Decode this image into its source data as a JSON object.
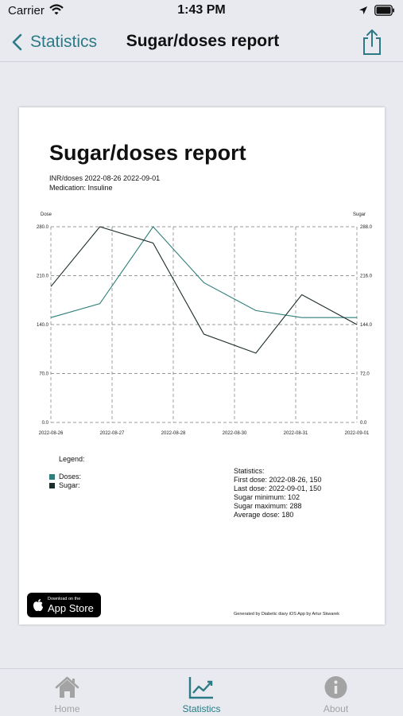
{
  "status_bar": {
    "carrier": "Carrier",
    "time": "1:43 PM"
  },
  "nav": {
    "back_label": "Statistics",
    "title": "Sugar/doses report"
  },
  "report": {
    "title": "Sugar/doses report",
    "subtitle": "INR/doses 2022-08-26 2022-09-01",
    "medication": "Medication: Insuline",
    "legend_title": "Legend:",
    "legend": [
      {
        "label": "Doses:",
        "color": "#2e7f7a"
      },
      {
        "label": "Sugar:",
        "color": "#1c2b2b"
      }
    ],
    "stats": [
      "Statistics:",
      "First dose: 2022-08-26, 150",
      "Last dose: 2022-09-01, 150",
      "Sugar minimum: 102",
      "Sugar maximum: 288",
      "Average dose: 180"
    ],
    "appstore": {
      "small": "Download on the",
      "big": "App Store"
    },
    "generated_by": "Generated by Diabetic diary iOS App by Artur Skwarek"
  },
  "chart_data": {
    "type": "line",
    "left_axis_label": "Dose",
    "right_axis_label": "Sugar",
    "categories": [
      "2022-08-26",
      "2022-08-27",
      "2022-08-28",
      "2022-08-30",
      "2022-08-31",
      "2022-09-01"
    ],
    "left_ticks": [
      "0.0",
      "70.0",
      "140.0",
      "210.0",
      "280.0"
    ],
    "right_ticks": [
      "0.0",
      "72.0",
      "144.0",
      "216.0",
      "288.0"
    ],
    "left_range": [
      0,
      280
    ],
    "right_range": [
      0,
      288
    ],
    "grid": true,
    "series": [
      {
        "name": "Doses",
        "axis": "left",
        "color": "#2e7f7a",
        "x": [
          0,
          0.8,
          1.67,
          2.5,
          3.35,
          4.1,
          5
        ],
        "values": [
          150,
          170,
          280,
          200,
          160,
          150,
          150
        ]
      },
      {
        "name": "Sugar",
        "axis": "right",
        "color": "#1c2b2b",
        "x": [
          0,
          0.8,
          1.67,
          2.5,
          3.35,
          4.1,
          5
        ],
        "values": [
          200,
          288,
          264,
          130,
          102,
          188,
          144
        ]
      }
    ]
  },
  "tabs": [
    {
      "label": "Home",
      "active": false
    },
    {
      "label": "Statistics",
      "active": true
    },
    {
      "label": "About",
      "active": false
    }
  ],
  "colors": {
    "accent": "#2b7a85",
    "tab_inactive": "#a3a3a3",
    "tab_active": "#2b7a85"
  },
  "icons": {
    "back": "chevron-left-icon",
    "share": "share-icon",
    "home": "house-icon",
    "stats": "chart-trend-icon",
    "about": "info-icon"
  }
}
